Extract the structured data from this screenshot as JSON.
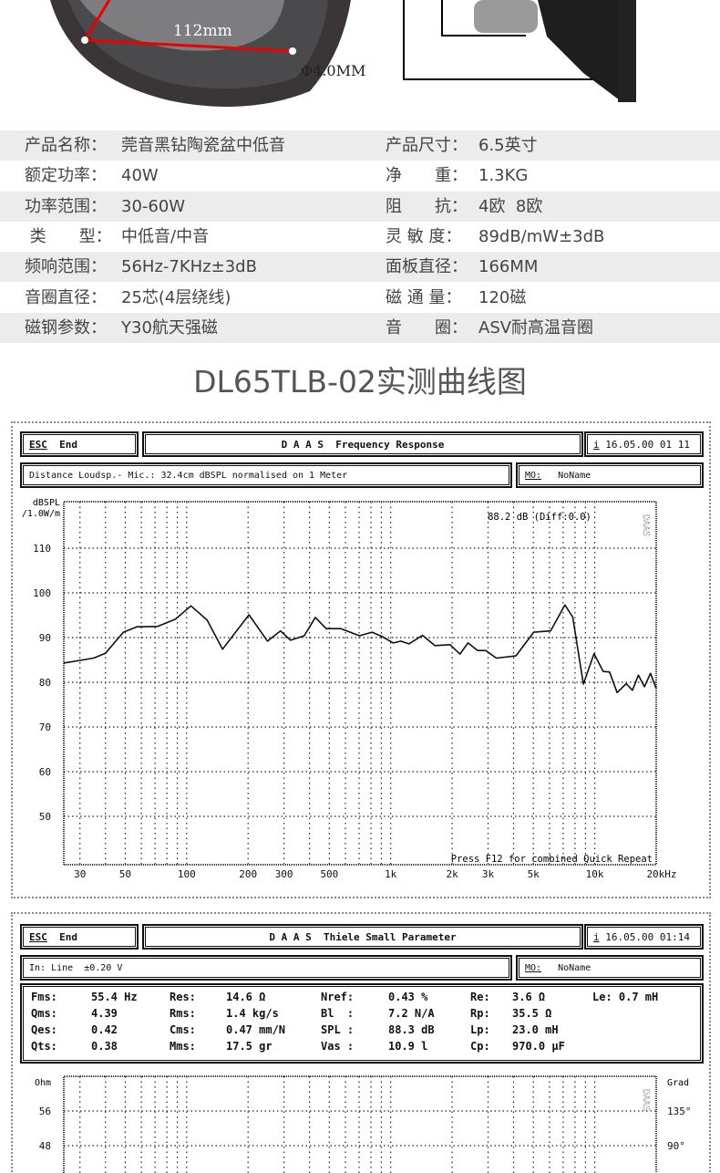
{
  "product_image": {
    "dimension_label": "112mm",
    "hole_label": "Φ4.0MM"
  },
  "specs": [
    {
      "left_label": "产品名称：",
      "left_value": "莞音黑钻陶瓷盆中低音",
      "right_label": "产品尺寸：",
      "right_value": "6.5英寸"
    },
    {
      "left_label": "额定功率：",
      "left_value": "40W",
      "right_label": "净　　重：",
      "right_value": "1.3KG"
    },
    {
      "left_label": "功率范围：",
      "left_value": "30-60W",
      "right_label": "阻　　抗：",
      "right_value": "4欧  8欧"
    },
    {
      "left_label": " 类　　型：",
      "left_value": "中低音/中音",
      "right_label": "灵 敏 度：",
      "right_value": "89dB/mW±3dB"
    },
    {
      "left_label": "频响范围：",
      "left_value": "56Hz-7KHz±3dB",
      "right_label": "面板直径：",
      "right_value": "166MM"
    },
    {
      "left_label": "音圈直径：",
      "left_value": "25芯(4层绕线)",
      "right_label": "磁 通 量：",
      "right_value": "120磁"
    },
    {
      "left_label": "磁钢参数：",
      "left_value": "Y30航天强磁",
      "right_label": "音　　圈：",
      "right_value": "ASV耐高温音圈"
    }
  ],
  "section_title": "DL65TLB-02实测曲线图",
  "fr_window": {
    "esc": "ESC",
    "end": "End",
    "title": "D A A S  Frequency Response",
    "info_icon": "i",
    "datetime": "16.05.00 01 11",
    "subtitle": "Distance Loudsp.- Mic.: 32.4cm dBSPL normalised on 1 Meter",
    "mo_label": "MO:",
    "mo_value": "NoName",
    "readout": "88.2 dB (Diff:0.0)",
    "footer_hint": "Press F12 for combined Quick Repeat",
    "logo": "DAAS"
  },
  "ts_window": {
    "esc": "ESC",
    "end": "End",
    "title": "D A A S  Thiele Small Parameter",
    "info_icon": "i",
    "datetime": "16.05.00 01:14",
    "subtitle": "In: Line  ±0.20 V",
    "mo_label": "MO:",
    "mo_value": "NoName",
    "logo": "DAAS",
    "params": [
      [
        "Fms:",
        "55.4 Hz",
        "Res:",
        "14.6 Ω",
        "Nref:",
        "0.43 %",
        "Re:",
        "3.6 Ω",
        "Le: 0.7 mH"
      ],
      [
        "Qms:",
        "4.39",
        "Rms:",
        "1.4 kg/s",
        "Bl  :",
        "7.2 N/A",
        "Rp:",
        "35.5 Ω",
        ""
      ],
      [
        "Qes:",
        "0.42",
        "Cms:",
        "0.47 mm/N",
        "SPL :",
        "88.3 dB",
        "Lp:",
        "23.0 mH",
        ""
      ],
      [
        "Qts:",
        "0.38",
        "Mms:",
        "17.5 gr",
        "Vas :",
        "10.9 l",
        "Cp:",
        "970.0 µF",
        ""
      ]
    ]
  },
  "chart_data": [
    {
      "type": "line",
      "title": "Frequency Response",
      "ylabel": "dBSPL /1.0W/m",
      "xscale": "log",
      "xlim": [
        25,
        20000
      ],
      "ylim": [
        39,
        120
      ],
      "grid": true,
      "x_tick_labels": [
        {
          "value": 30,
          "label": "30"
        },
        {
          "value": 50,
          "label": "50"
        },
        {
          "value": 100,
          "label": "100"
        },
        {
          "value": 200,
          "label": "200"
        },
        {
          "value": 300,
          "label": "300"
        },
        {
          "value": 500,
          "label": "500"
        },
        {
          "value": 1000,
          "label": "1k"
        },
        {
          "value": 2000,
          "label": "2k"
        },
        {
          "value": 3000,
          "label": "3k"
        },
        {
          "value": 5000,
          "label": "5k"
        },
        {
          "value": 10000,
          "label": "10k"
        },
        {
          "value": 20000,
          "label": "20kHz"
        }
      ],
      "x_gridlines": [
        30,
        40,
        50,
        60,
        70,
        80,
        90,
        100,
        200,
        300,
        400,
        500,
        600,
        700,
        800,
        900,
        1000,
        2000,
        3000,
        4000,
        5000,
        6000,
        7000,
        8000,
        9000,
        10000
      ],
      "y_ticks": [
        110,
        100,
        90,
        80,
        70,
        60,
        50
      ],
      "series": [
        {
          "color": "#111111",
          "x": [
            25,
            35,
            40,
            49,
            57,
            72,
            88,
            105,
            126,
            150,
            202,
            249,
            288,
            323,
            377,
            427,
            483,
            570,
            703,
            811,
            910,
            1029,
            1121,
            1228,
            1432,
            1646,
            1953,
            2186,
            2391,
            2671,
            2919,
            3292,
            4104,
            5023,
            6072,
            7137,
            7800,
            8795,
            9916,
            11004,
            11813,
            12869,
            14276,
            15290,
            16371,
            17516,
            18746,
            20000
          ],
          "y": [
            84.3,
            85.4,
            86.5,
            91.2,
            92.4,
            92.5,
            94.1,
            97.1,
            93.9,
            87.4,
            95.1,
            89.2,
            91.5,
            89.4,
            90.4,
            94.5,
            92.0,
            92.0,
            90.4,
            91.2,
            90.2,
            88.8,
            89.2,
            88.6,
            90.5,
            88.2,
            88.4,
            86.3,
            88.8,
            87.1,
            87.1,
            85.4,
            85.9,
            91.2,
            91.5,
            97.3,
            94.6,
            79.6,
            86.4,
            82.4,
            82.3,
            77.7,
            79.7,
            78.2,
            81.6,
            79.0,
            82.0,
            78.6
          ]
        }
      ]
    },
    {
      "type": "line",
      "title": "Thiele Small Parameter",
      "ylabel": "Ohm",
      "y2label": "Grad",
      "xscale": "log",
      "xlim": [
        25,
        20000
      ],
      "grid": true,
      "x_gridlines": [
        30,
        40,
        50,
        60,
        70,
        80,
        90,
        100,
        200,
        300,
        400,
        500,
        600,
        700,
        800,
        900,
        1000,
        2000,
        3000,
        4000,
        5000,
        6000,
        7000,
        8000,
        9000,
        10000
      ],
      "y_ticks": [
        56,
        48
      ],
      "y2_ticks": [
        "135°",
        "90°"
      ],
      "series": []
    }
  ]
}
